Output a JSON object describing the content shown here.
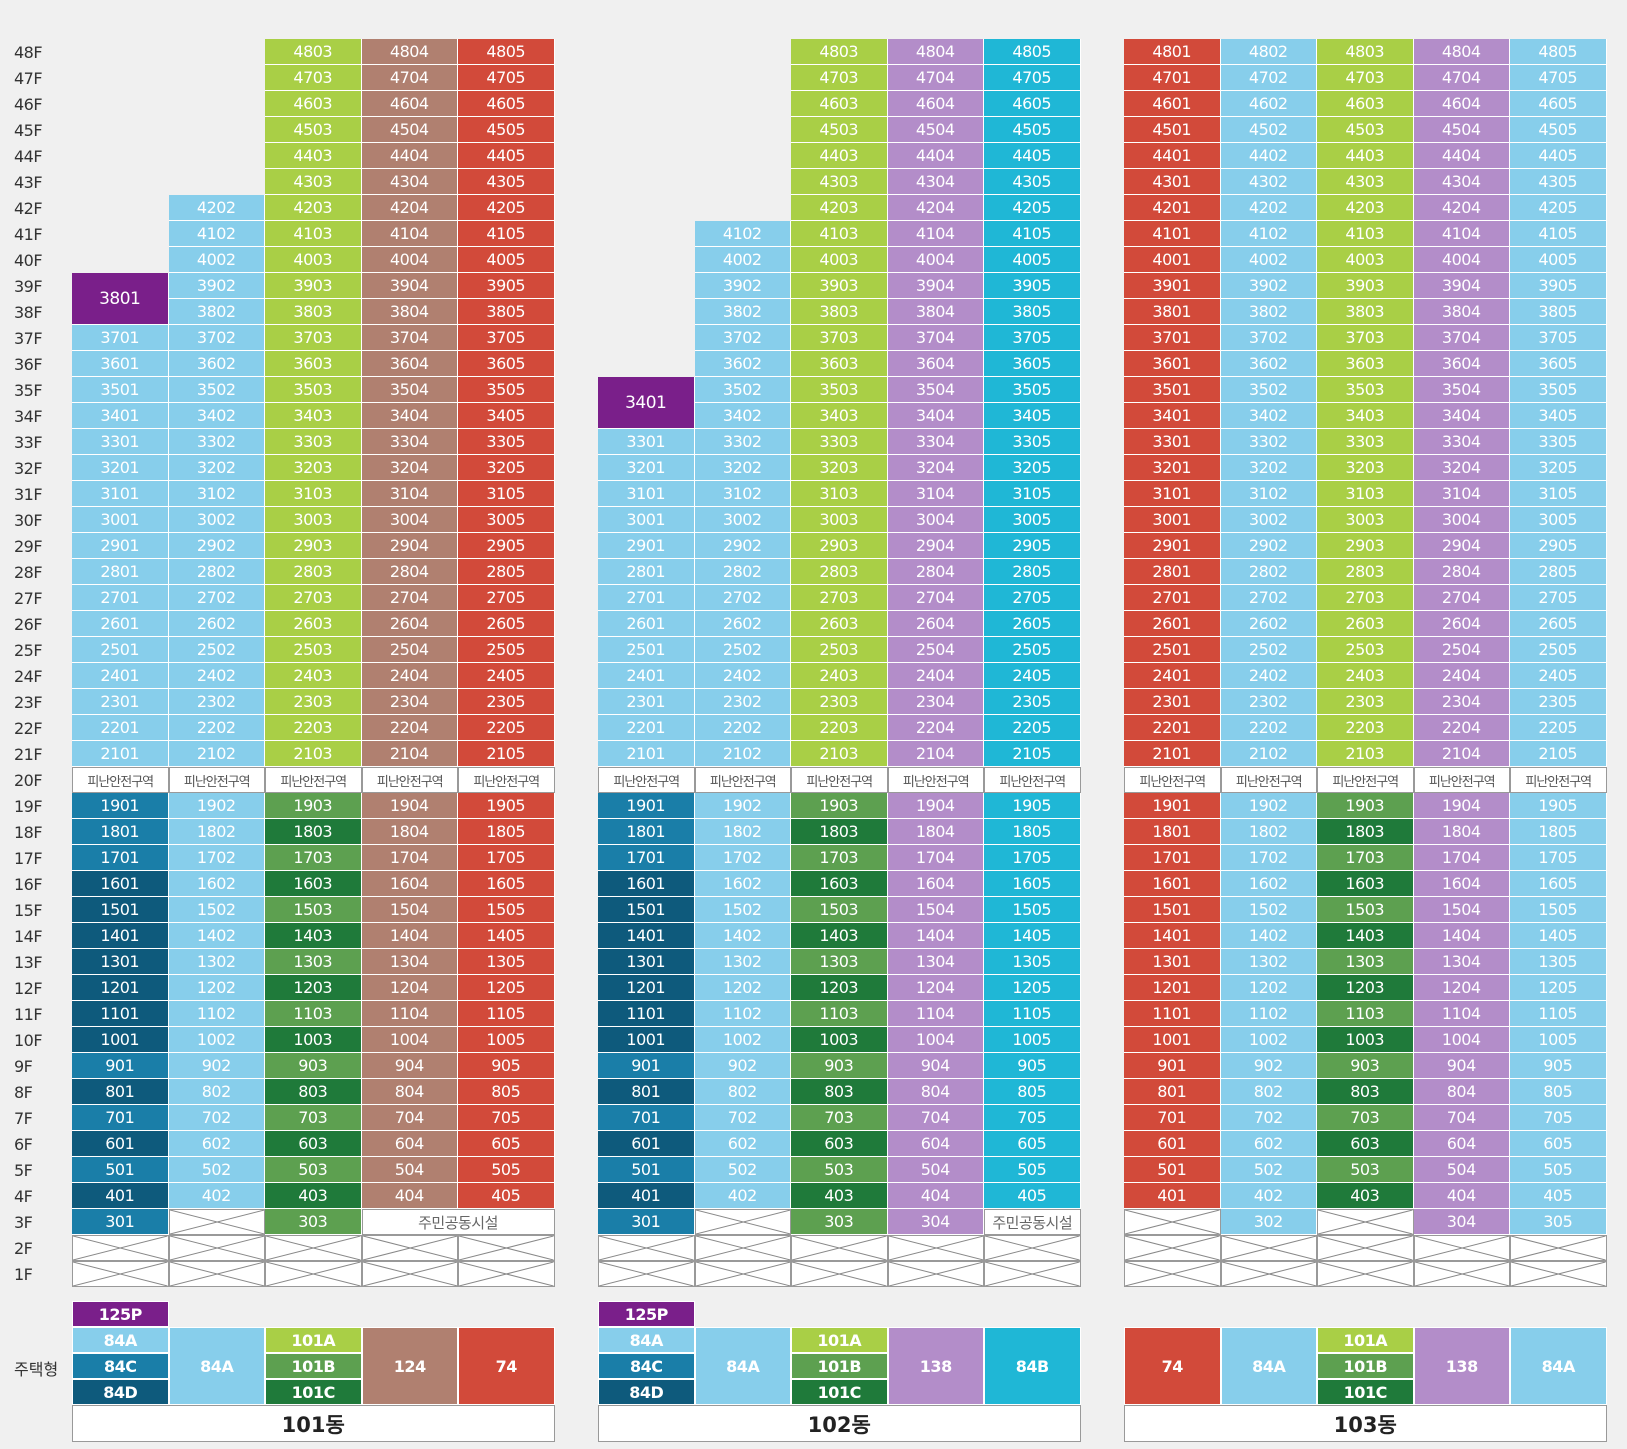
{
  "title_hidden": "",
  "floors": [
    "48F",
    "47F",
    "46F",
    "45F",
    "44F",
    "43F",
    "42F",
    "41F",
    "40F",
    "39F",
    "38F",
    "37F",
    "36F",
    "35F",
    "34F",
    "33F",
    "32F",
    "31F",
    "30F",
    "29F",
    "28F",
    "27F",
    "26F",
    "25F",
    "24F",
    "23F",
    "22F",
    "21F",
    "20F",
    "19F",
    "18F",
    "17F",
    "16F",
    "15F",
    "14F",
    "13F",
    "12F",
    "11F",
    "10F",
    "9F",
    "8F",
    "7F",
    "6F",
    "5F",
    "4F",
    "3F",
    "2F",
    "1F"
  ],
  "type_label": "주택형",
  "refuge_label": "피난안전구역",
  "community_label": "주민공동시설",
  "colors": {
    "light_blue": "#87ceeb",
    "lime": "#a9cf46",
    "brown": "#b08070",
    "red": "#d24a3a",
    "purple": "#b38dc9",
    "cyan": "#1fb7d6",
    "dark_purple": "#7a1f8a",
    "teal_blue": "#1a7ea8",
    "navy_teal": "#0e5a7c",
    "mid_green": "#5da050",
    "dark_green": "#1f7a3a"
  },
  "buildings": [
    {
      "name": "101동",
      "columns": [
        {
          "unit": "01",
          "top": 37,
          "upper_color": "light_blue",
          "special_merge": {
            "label": "3801",
            "floors": [
              39,
              38
            ],
            "color": "dark_purple"
          },
          "lower_colors": {
            "dark": [
              16,
              15,
              14,
              13,
              12,
              11,
              10,
              8,
              6,
              4
            ],
            "color": "teal_blue",
            "dark_color": "navy_teal"
          },
          "f3": "unit"
        },
        {
          "unit": "02",
          "top": 42,
          "upper_color": "light_blue",
          "lower_color": "light_blue",
          "f3": "x"
        },
        {
          "unit": "03",
          "top": 48,
          "upper_color": "lime",
          "lower_colors": {
            "dark": [
              18,
              16,
              14,
              12,
              10,
              8,
              6,
              4
            ],
            "color": "mid_green",
            "dark_color": "dark_green"
          },
          "f3": "unit"
        },
        {
          "unit": "04",
          "top": 48,
          "upper_color": "brown",
          "lower_color": "brown",
          "f3": "community"
        },
        {
          "unit": "05",
          "top": 48,
          "upper_color": "red",
          "lower_color": "red",
          "f3": "community"
        }
      ],
      "types": [
        {
          "stack": [
            {
              "label": "125P",
              "color": "dark_purple"
            },
            {
              "label": "84A",
              "color": "light_blue"
            },
            {
              "label": "84C",
              "color": "teal_blue"
            },
            {
              "label": "84D",
              "color": "navy_teal"
            }
          ]
        },
        {
          "single": {
            "label": "84A",
            "color": "light_blue"
          }
        },
        {
          "stack3": [
            {
              "label": "101A",
              "color": "lime"
            },
            {
              "label": "101B",
              "color": "mid_green"
            },
            {
              "label": "101C",
              "color": "dark_green"
            }
          ]
        },
        {
          "single": {
            "label": "124",
            "color": "brown"
          }
        },
        {
          "single": {
            "label": "74",
            "color": "red"
          }
        }
      ]
    },
    {
      "name": "102동",
      "columns": [
        {
          "unit": "01",
          "top": 33,
          "upper_color": "light_blue",
          "special_merge": {
            "label": "3401",
            "floors": [
              35,
              34
            ],
            "color": "dark_purple"
          },
          "lower_colors": {
            "dark": [
              16,
              15,
              14,
              13,
              12,
              11,
              10,
              8,
              6,
              4
            ],
            "color": "teal_blue",
            "dark_color": "navy_teal"
          },
          "f3": "unit"
        },
        {
          "unit": "02",
          "top": 41,
          "upper_color": "light_blue",
          "lower_color": "light_blue",
          "f3": "x"
        },
        {
          "unit": "03",
          "top": 48,
          "upper_color": "lime",
          "lower_colors": {
            "dark": [
              18,
              16,
              14,
              12,
              10,
              8,
              6,
              4
            ],
            "color": "mid_green",
            "dark_color": "dark_green"
          },
          "f3": "unit"
        },
        {
          "unit": "04",
          "top": 48,
          "upper_color": "purple",
          "lower_color": "purple",
          "f3": "unit"
        },
        {
          "unit": "05",
          "top": 48,
          "upper_color": "cyan",
          "lower_color": "cyan",
          "f3": "community"
        }
      ],
      "types": [
        {
          "stack": [
            {
              "label": "125P",
              "color": "dark_purple"
            },
            {
              "label": "84A",
              "color": "light_blue"
            },
            {
              "label": "84C",
              "color": "teal_blue"
            },
            {
              "label": "84D",
              "color": "navy_teal"
            }
          ]
        },
        {
          "single": {
            "label": "84A",
            "color": "light_blue"
          }
        },
        {
          "stack3": [
            {
              "label": "101A",
              "color": "lime"
            },
            {
              "label": "101B",
              "color": "mid_green"
            },
            {
              "label": "101C",
              "color": "dark_green"
            }
          ]
        },
        {
          "single": {
            "label": "138",
            "color": "purple"
          }
        },
        {
          "single": {
            "label": "84B",
            "color": "cyan"
          }
        }
      ]
    },
    {
      "name": "103동",
      "columns": [
        {
          "unit": "01",
          "top": 48,
          "upper_color": "red",
          "lower_color": "red",
          "f3": "x"
        },
        {
          "unit": "02",
          "top": 48,
          "upper_color": "light_blue",
          "lower_color": "light_blue",
          "f3": "unit"
        },
        {
          "unit": "03",
          "top": 48,
          "upper_color": "lime",
          "lower_colors": {
            "dark": [
              18,
              16,
              14,
              12,
              10,
              8,
              6,
              4
            ],
            "color": "mid_green",
            "dark_color": "dark_green"
          },
          "f3": "x"
        },
        {
          "unit": "04",
          "top": 48,
          "upper_color": "purple",
          "lower_color": "purple",
          "f3": "unit"
        },
        {
          "unit": "05",
          "top": 48,
          "upper_color": "light_blue",
          "lower_color": "light_blue",
          "f3": "unit"
        }
      ],
      "types": [
        {
          "single": {
            "label": "74",
            "color": "red"
          }
        },
        {
          "single": {
            "label": "84A",
            "color": "light_blue"
          }
        },
        {
          "stack3": [
            {
              "label": "101A",
              "color": "lime"
            },
            {
              "label": "101B",
              "color": "mid_green"
            },
            {
              "label": "101C",
              "color": "dark_green"
            }
          ]
        },
        {
          "single": {
            "label": "138",
            "color": "purple"
          }
        },
        {
          "single": {
            "label": "84A",
            "color": "light_blue"
          }
        }
      ]
    }
  ]
}
